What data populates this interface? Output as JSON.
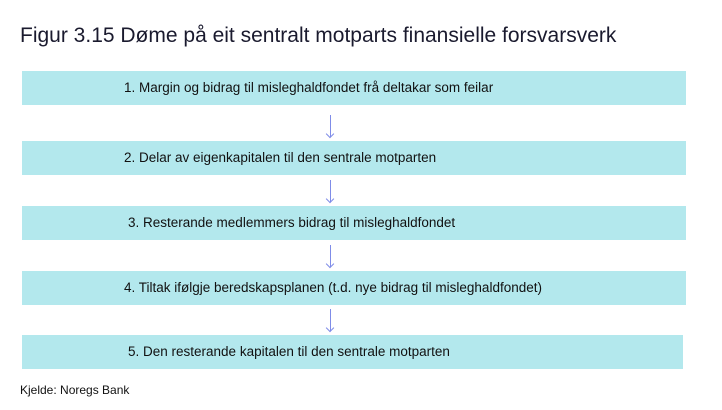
{
  "title": "Figur 3.15 Døme på eit sentralt motparts finansielle forsvarsverk",
  "steps": [
    "1. Margin og bidrag til misleghaldfondet frå deltakar som feilar",
    "2. Delar av eigenkapitalen til den sentrale motparten",
    "3. Resterande medlemmers bidrag til misleghaldfondet",
    "4. Tiltak ifølgje beredskapsplanen (t.d. nye bidrag til misleghaldfondet)",
    "5. Den resterande kapitalen til den sentrale motparten"
  ],
  "source": "Kjelde: Noregs Bank",
  "colors": {
    "box": "#b3e8ed",
    "arrow": "#7f8ce8"
  }
}
